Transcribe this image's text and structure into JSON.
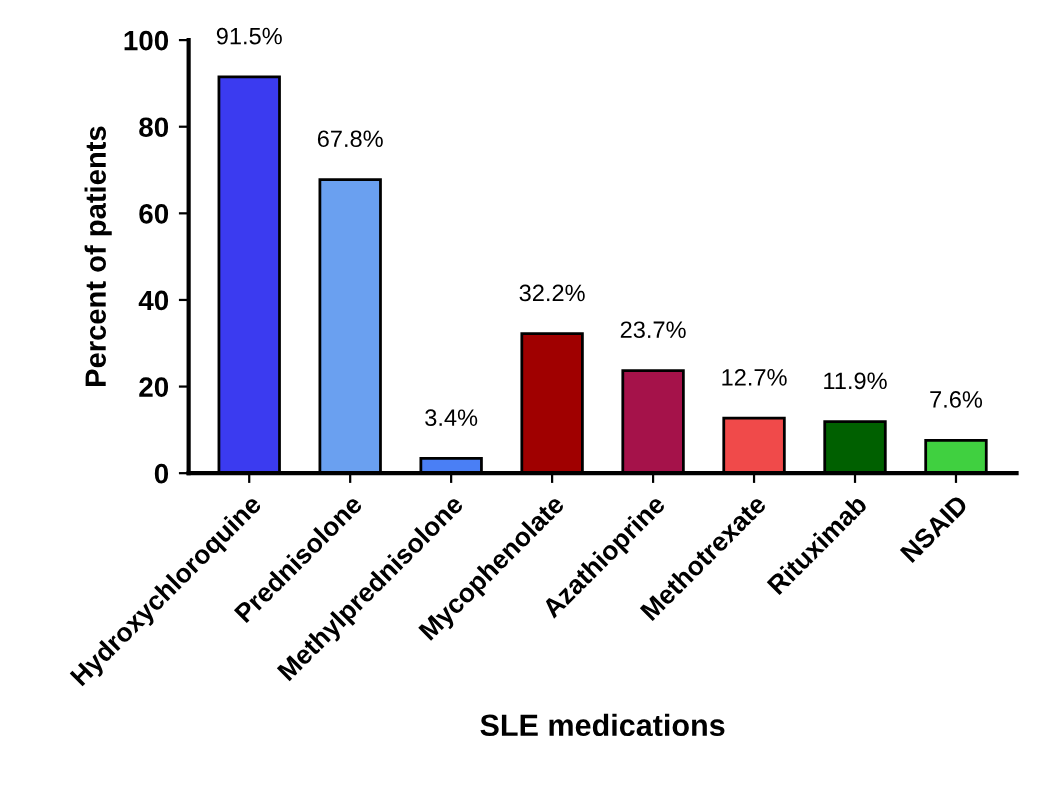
{
  "chart_data": {
    "type": "bar",
    "xlabel": "SLE medications",
    "ylabel": "Percent of patients",
    "categories": [
      "Hydroxychloroquine",
      "Prednisolone",
      "Methylprednisolone",
      "Mycophenolate",
      "Azathioprine",
      "Methotrexate",
      "Rituximab",
      "NSAID"
    ],
    "values": [
      91.5,
      67.8,
      3.4,
      32.2,
      23.7,
      12.7,
      11.9,
      7.6
    ],
    "value_labels": [
      "91.5%",
      "67.8%",
      "3.4%",
      "32.2%",
      "23.7%",
      "12.7%",
      "11.9%",
      "7.6%"
    ],
    "colors": [
      "#3b3bf0",
      "#6aa0f0",
      "#4a7ff5",
      "#a00000",
      "#a5124a",
      "#f04a4a",
      "#006000",
      "#40d040"
    ],
    "ylim": [
      0,
      100
    ],
    "yticks": [
      0,
      20,
      40,
      60,
      80,
      100
    ],
    "grid": false
  }
}
